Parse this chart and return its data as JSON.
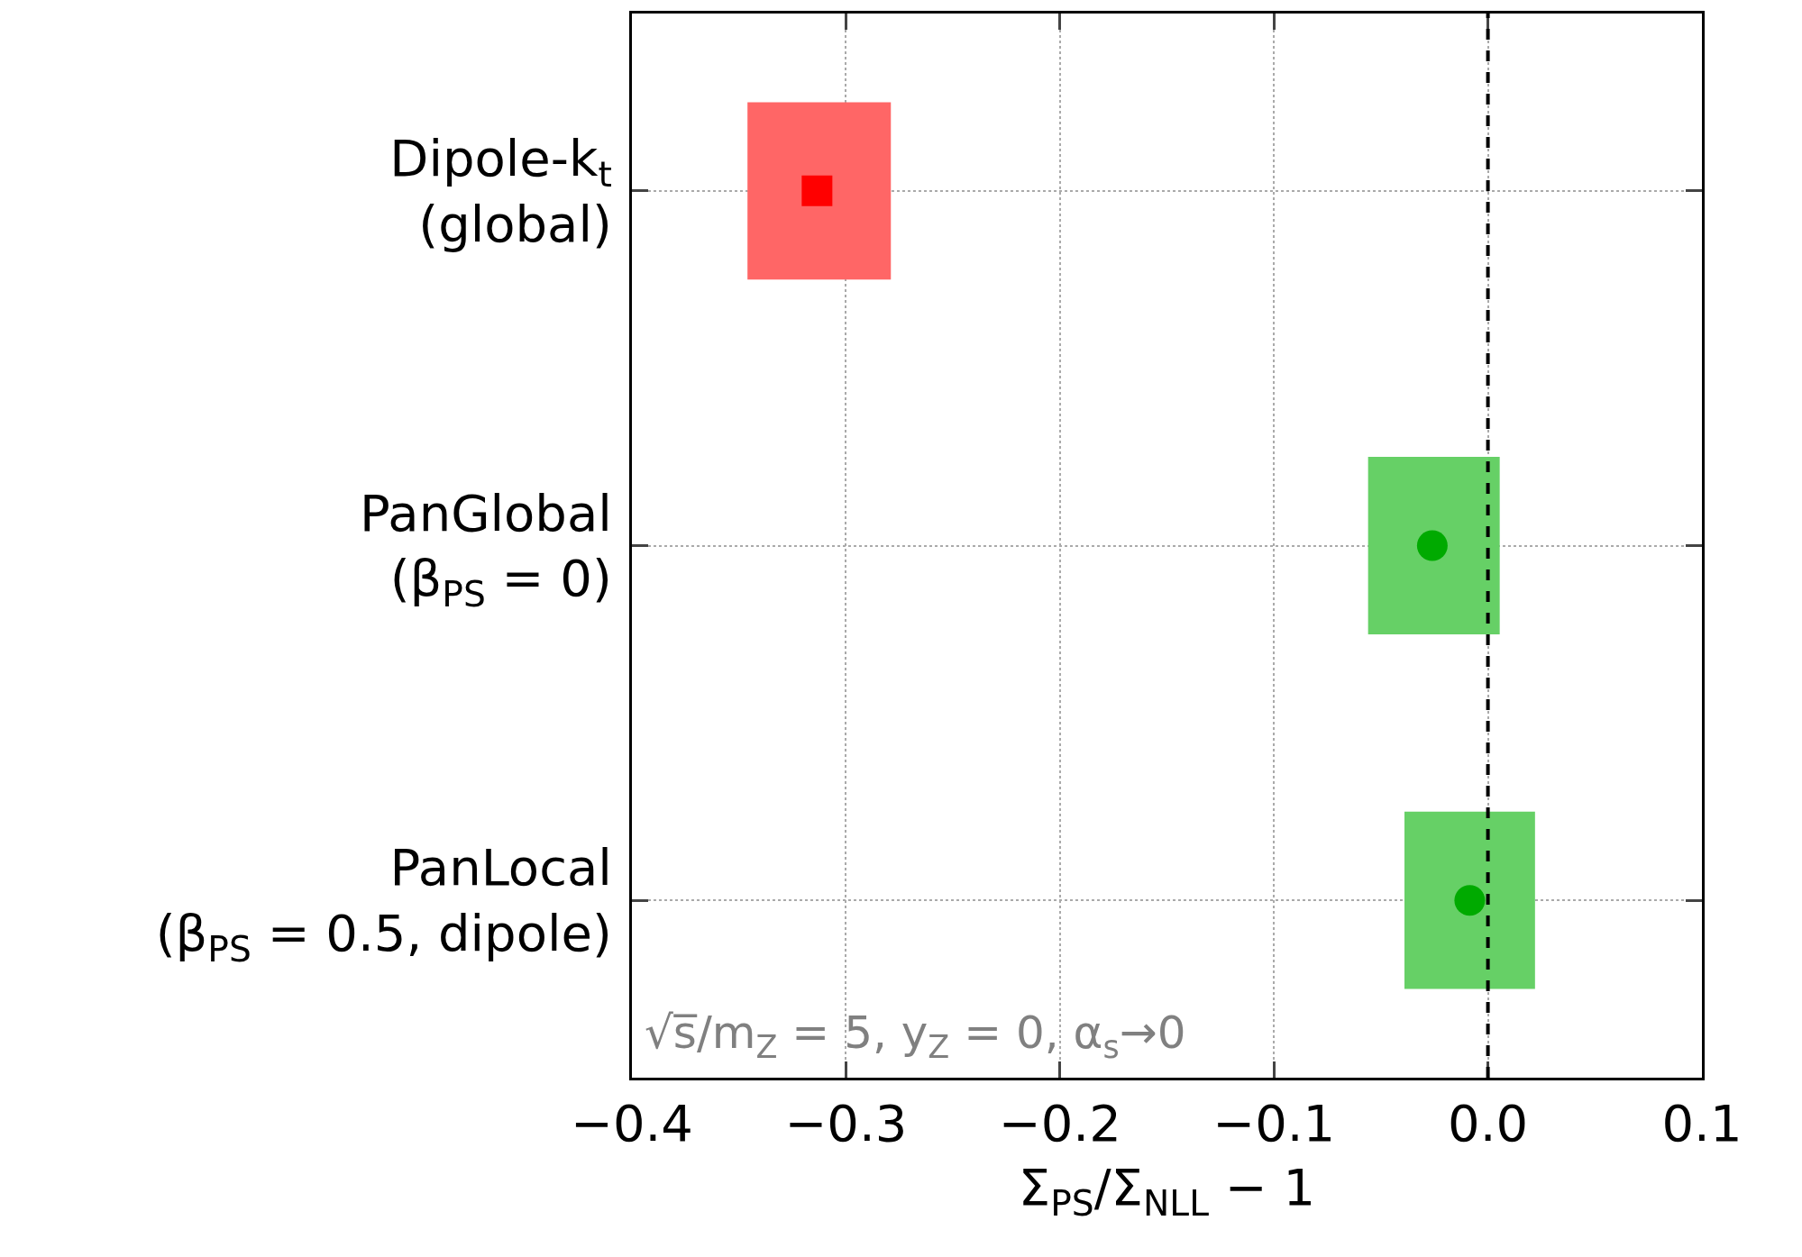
{
  "chart_data": {
    "type": "scatter",
    "orientation": "horizontal",
    "categories": [
      "Dipole-k$_{t}$\n(global)",
      "PanGlobal\n(β$_{PS}$ = 0)",
      "PanLocal\n(β$_{PS}$ = 0.5, dipole)"
    ],
    "series": [
      {
        "type": "bar",
        "color": "#ff6666",
        "base": [
          -0.346,
          null,
          null
        ],
        "values": [
          0.067,
          null,
          null
        ]
      },
      {
        "type": "bar",
        "color": "#66d066",
        "base": [
          null,
          -0.056,
          -0.039
        ],
        "values": [
          null,
          0.0615,
          0.061
        ]
      },
      {
        "color": "#ff0000",
        "marker": "square",
        "values": [
          -0.3135,
          null,
          null
        ]
      },
      {
        "color": "#00aa00",
        "marker": "circle",
        "values": [
          null,
          -0.026,
          -0.0085
        ]
      }
    ],
    "xlabel": "Σ$_{PS}$/Σ$_{NLL}$ − 1",
    "xlim": [
      -0.4,
      0.1
    ],
    "xticks": [
      {
        "value": -0.4,
        "label": "−0.4"
      },
      {
        "value": -0.3,
        "label": "−0.3"
      },
      {
        "value": -0.2,
        "label": "−0.2"
      },
      {
        "value": -0.1,
        "label": "−0.1"
      },
      {
        "value": 0.0,
        "label": "0.0"
      },
      {
        "value": 0.1,
        "label": "0.1"
      }
    ],
    "ref_lines": [
      {
        "axis": "x",
        "value": 0,
        "color": "#000000",
        "line_style": "dashed"
      }
    ],
    "annotations": [
      "√s̅/m$_{Z}$ = 5, y$_{Z}$ = 0, α$_{s}$→0"
    ],
    "grid": true
  }
}
